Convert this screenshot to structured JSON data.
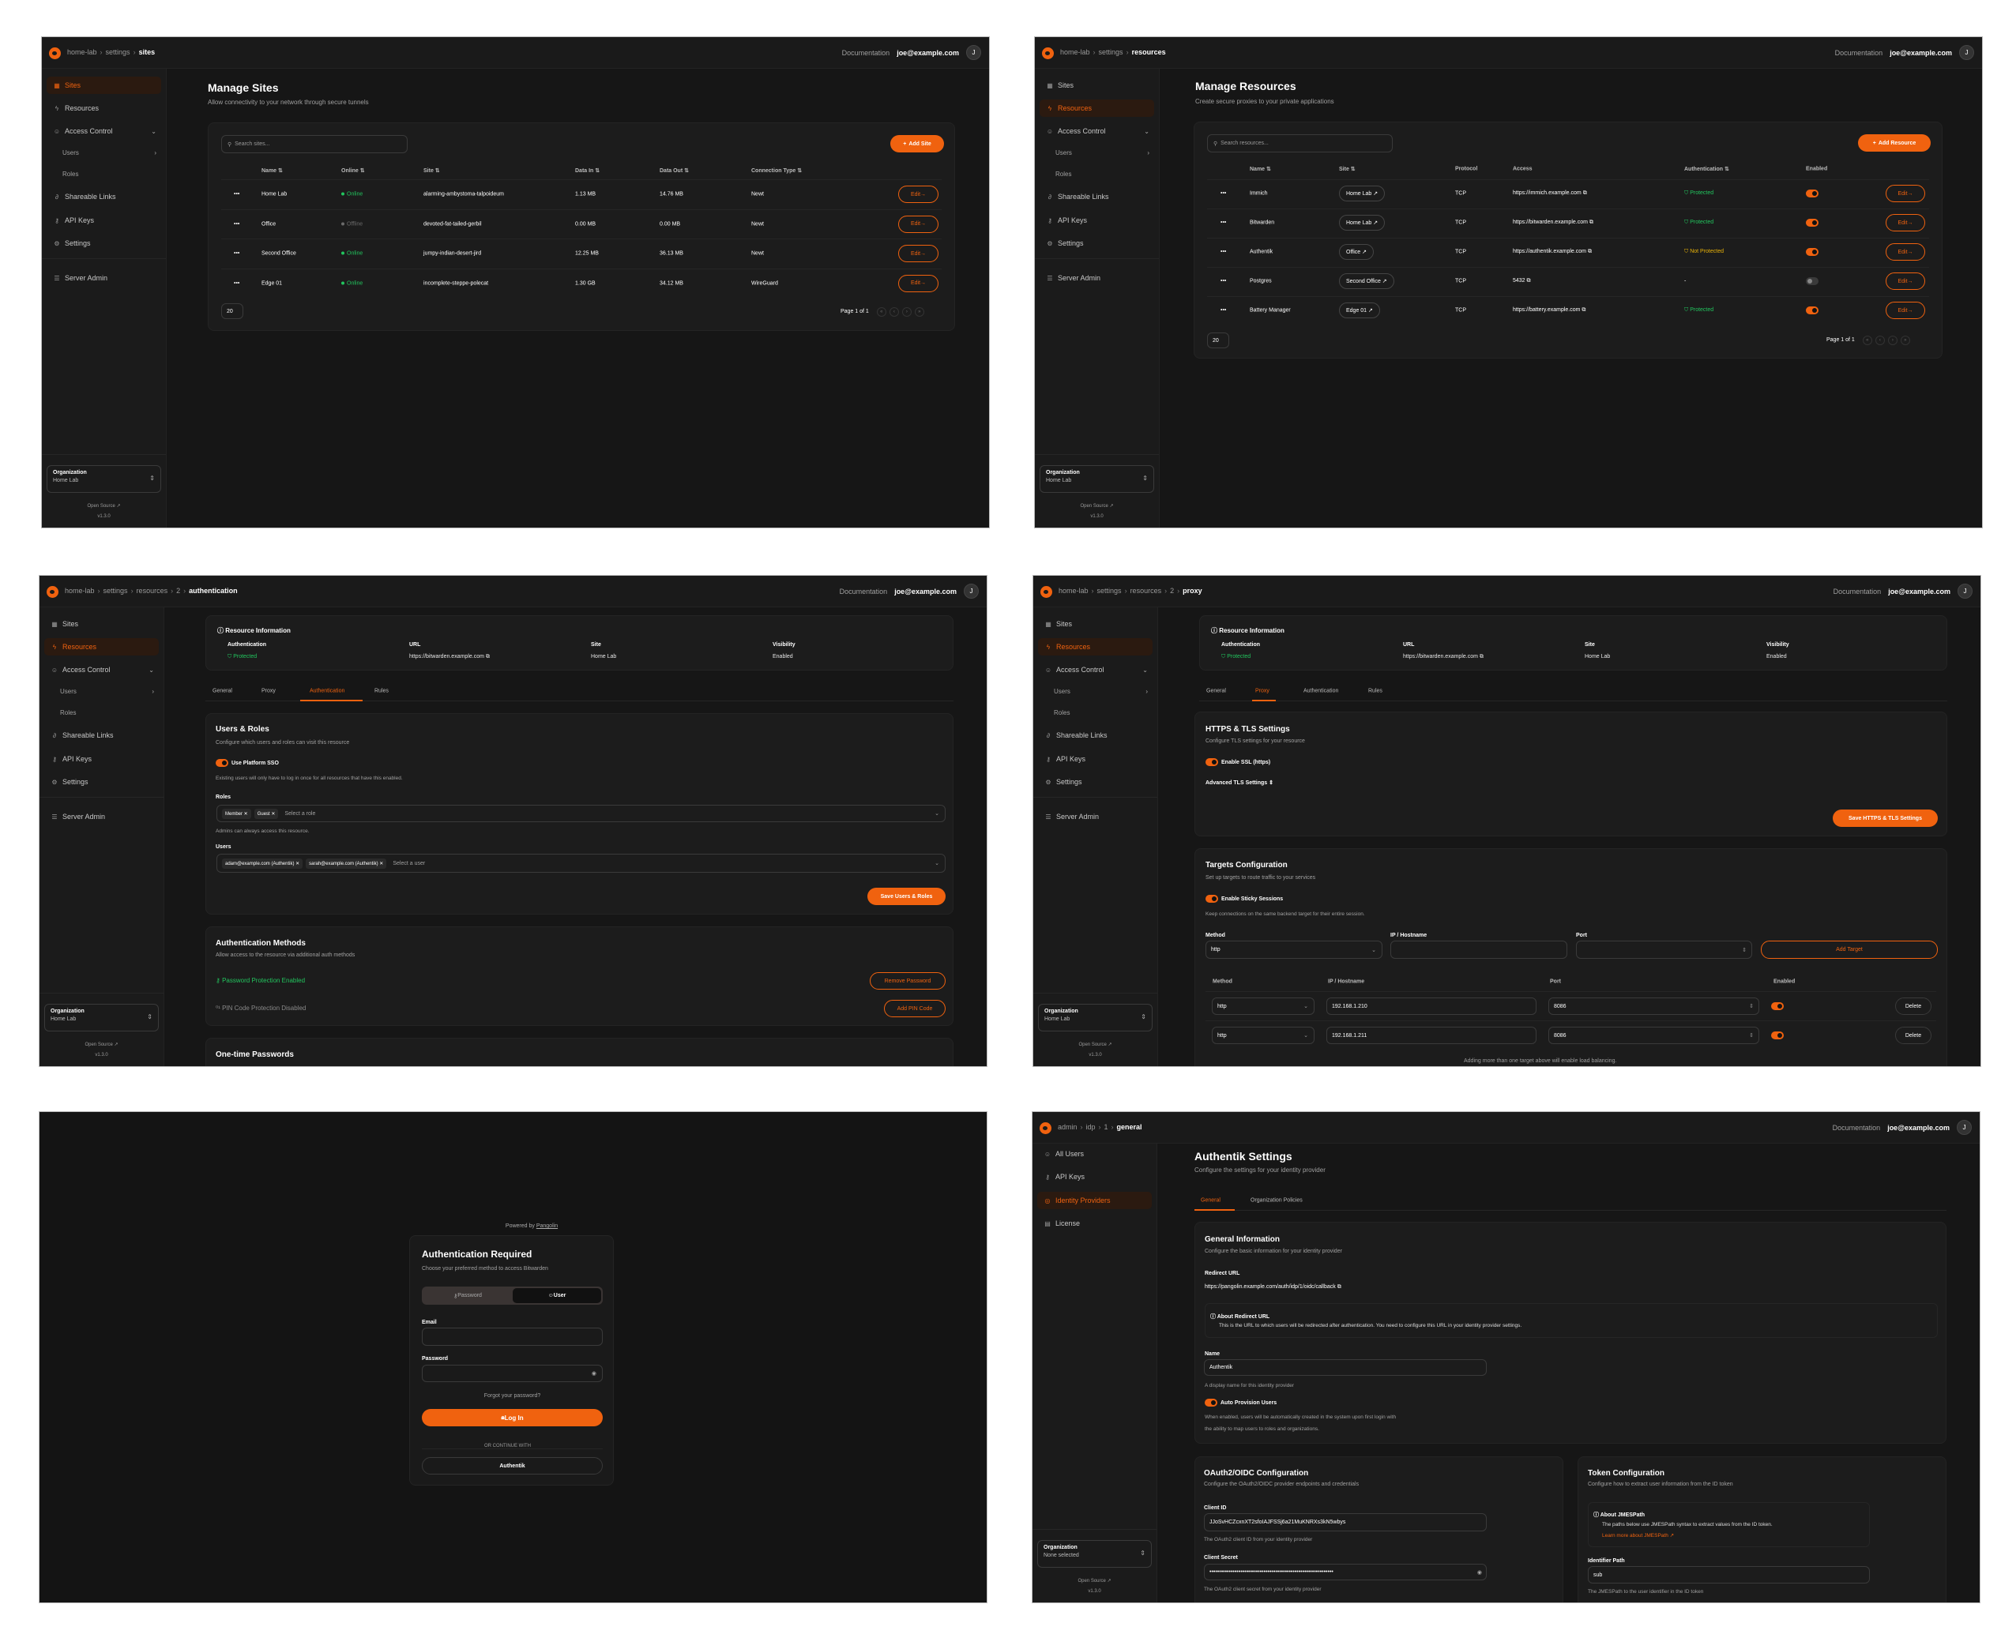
{
  "accent": "#f0620f",
  "colors": {
    "protected": "#22c55e",
    "not_protected": "#eab308",
    "offline": "#6b6b6b"
  },
  "common": {
    "documentation": "Documentation",
    "user_email": "joe@example.com",
    "avatar_initial": "J",
    "org_label": "Organization",
    "open_source": "Open Source",
    "version": "v1.3.0"
  },
  "org_nav": [
    {
      "label": "Sites",
      "icon": "sites-icon"
    },
    {
      "label": "Resources",
      "icon": "resources-icon"
    },
    {
      "label": "Access Control",
      "icon": "access-control-icon",
      "chevron": "down"
    },
    {
      "label": "Users",
      "sub": true,
      "chevron": "right"
    },
    {
      "label": "Roles",
      "sub": true
    },
    {
      "label": "Shareable Links",
      "icon": "link-icon"
    },
    {
      "label": "API Keys",
      "icon": "key-icon"
    },
    {
      "label": "Settings",
      "icon": "gear-icon"
    },
    {
      "label": "Server Admin",
      "icon": "server-icon"
    }
  ],
  "admin_nav": [
    {
      "label": "All Users",
      "icon": "users-icon"
    },
    {
      "label": "API Keys",
      "icon": "key-icon"
    },
    {
      "label": "Identity Providers",
      "icon": "fingerprint-icon"
    },
    {
      "label": "License",
      "icon": "license-icon"
    }
  ],
  "sites_page": {
    "breadcrumb": [
      "home-lab",
      "settings",
      "sites"
    ],
    "active_nav": 0,
    "org_name": "Home Lab",
    "title": "Manage Sites",
    "subtitle": "Allow connectivity to your network through secure tunnels",
    "search_placeholder": "Search sites...",
    "add_button": "Add Site",
    "columns": [
      "Name",
      "Online",
      "Site",
      "Data In",
      "Data Out",
      "Connection Type"
    ],
    "rows": [
      {
        "name": "Home Lab",
        "online": "Online",
        "site": "alarming-ambystoma-talpoideum",
        "data_in": "1.13 MB",
        "data_out": "14.76 MB",
        "type": "Newt"
      },
      {
        "name": "Office",
        "online": "Offline",
        "site": "devoted-fat-tailed-gerbil",
        "data_in": "0.00 MB",
        "data_out": "0.00 MB",
        "type": "Newt"
      },
      {
        "name": "Second Office",
        "online": "Online",
        "site": "jumpy-indian-desert-jird",
        "data_in": "12.25 MB",
        "data_out": "36.13 MB",
        "type": "Newt"
      },
      {
        "name": "Edge 01",
        "online": "Online",
        "site": "incomplete-steppe-polecat",
        "data_in": "1.30 GB",
        "data_out": "34.12 MB",
        "type": "WireGuard"
      }
    ],
    "edit_label": "Edit",
    "page_size": "20",
    "page_info": "Page 1 of 1"
  },
  "resources_page": {
    "breadcrumb": [
      "home-lab",
      "settings",
      "resources"
    ],
    "active_nav": 1,
    "org_name": "Home Lab",
    "title": "Manage Resources",
    "subtitle": "Create secure proxies to your private applications",
    "search_placeholder": "Search resources...",
    "add_button": "Add Resource",
    "columns": [
      "Name",
      "Site",
      "Protocol",
      "Access",
      "Authentication",
      "Enabled"
    ],
    "rows": [
      {
        "name": "Immich",
        "site": "Home Lab",
        "protocol": "TCP",
        "access": "https://immich.example.com",
        "auth": "Protected",
        "auth_state": "protected",
        "enabled": true
      },
      {
        "name": "Bitwarden",
        "site": "Home Lab",
        "protocol": "TCP",
        "access": "https://bitwarden.example.com",
        "auth": "Protected",
        "auth_state": "protected",
        "enabled": true
      },
      {
        "name": "Authentik",
        "site": "Office",
        "protocol": "TCP",
        "access": "https://authentik.example.com",
        "auth": "Not Protected",
        "auth_state": "not_protected",
        "enabled": true
      },
      {
        "name": "Postgres",
        "site": "Second Office",
        "protocol": "TCP",
        "access": "5432",
        "auth": "-",
        "auth_state": "none",
        "enabled": false
      },
      {
        "name": "Battery Manager",
        "site": "Edge 01",
        "protocol": "TCP",
        "access": "https://battery.example.com",
        "auth": "Protected",
        "auth_state": "protected",
        "enabled": true
      }
    ],
    "edit_label": "Edit",
    "page_size": "20",
    "page_info": "Page 1 of 1"
  },
  "resource_info": {
    "heading": "Resource Information",
    "fields": [
      {
        "label": "Authentication",
        "value": "Protected"
      },
      {
        "label": "URL",
        "value": "https://bitwarden.example.com"
      },
      {
        "label": "Site",
        "value": "Home Lab"
      },
      {
        "label": "Visibility",
        "value": "Enabled"
      }
    ],
    "tabs": [
      "General",
      "Proxy",
      "Authentication",
      "Rules"
    ]
  },
  "auth_page": {
    "breadcrumb": [
      "home-lab",
      "settings",
      "resources",
      "2",
      "authentication"
    ],
    "active_nav": 1,
    "org_name": "Home Lab",
    "active_tab": 2,
    "users_roles": {
      "title": "Users & Roles",
      "description": "Configure which users and roles can visit this resource",
      "sso_label": "Use Platform SSO",
      "sso_enabled": true,
      "sso_hint": "Existing users will only have to log in once for all resources that have this enabled.",
      "roles_label": "Roles",
      "roles": [
        "Member",
        "Guest"
      ],
      "roles_placeholder": "Select a role",
      "admins_hint": "Admins can always access this resource.",
      "users_label": "Users",
      "users": [
        "adam@example.com (Authentik)",
        "sarah@example.com (Authentik)"
      ],
      "users_placeholder": "Select a user",
      "save_button": "Save Users & Roles"
    },
    "methods": {
      "title": "Authentication Methods",
      "description": "Allow access to the resource via additional auth methods",
      "password_status": "Password Protection Enabled",
      "remove_password": "Remove Password",
      "pin_status": "PIN Code Protection Disabled",
      "add_pin": "Add PIN Code"
    },
    "otp_title": "One-time Passwords"
  },
  "proxy_page": {
    "breadcrumb": [
      "home-lab",
      "settings",
      "resources",
      "2",
      "proxy"
    ],
    "active_nav": 1,
    "org_name": "Home Lab",
    "active_tab": 1,
    "tls": {
      "title": "HTTPS & TLS Settings",
      "description": "Configure TLS settings for your resource",
      "ssl_label": "Enable SSL (https)",
      "ssl_enabled": true,
      "advanced_label": "Advanced TLS Settings",
      "save_button": "Save HTTPS & TLS Settings"
    },
    "targets": {
      "title": "Targets Configuration",
      "description": "Set up targets to route traffic to your services",
      "sticky_label": "Enable Sticky Sessions",
      "sticky_enabled": true,
      "sticky_hint": "Keep connections on the same backend target for their entire session.",
      "method_label": "Method",
      "ip_label": "IP / Hostname",
      "port_label": "Port",
      "new_method": "http",
      "add_button": "Add Target",
      "columns": [
        "Method",
        "IP / Hostname",
        "Port",
        "Enabled"
      ],
      "rows": [
        {
          "method": "http",
          "ip": "192.168.1.210",
          "port": "8086",
          "enabled": true
        },
        {
          "method": "http",
          "ip": "192.168.1.211",
          "port": "8086",
          "enabled": true
        }
      ],
      "delete_label": "Delete",
      "footnote": "Adding more than one target above will enable load balancing."
    }
  },
  "login_page": {
    "powered_by": "Powered by",
    "powered_link": "Pangolin",
    "title": "Authentication Required",
    "subtitle": "Choose your preferred method to access Bitwarden",
    "tab_password": "Password",
    "tab_user": "User",
    "active_tab": "User",
    "email_label": "Email",
    "email_value": "",
    "password_label": "Password",
    "password_value": "",
    "forgot": "Forgot your password?",
    "login_button": "Log In",
    "or_continue": "OR CONTINUE WITH",
    "sso_button": "Authentik"
  },
  "idp_page": {
    "breadcrumb": [
      "admin",
      "idp",
      "1",
      "general"
    ],
    "active_nav": 2,
    "org_name": "None selected",
    "title": "Authentik Settings",
    "subtitle": "Configure the settings for your identity provider",
    "tabs": [
      "General",
      "Organization Policies"
    ],
    "active_tab": 0,
    "general": {
      "title": "General Information",
      "description": "Configure the basic information for your identity provider",
      "redirect_label": "Redirect URL",
      "redirect_url": "https://pangolin.example.com/auth/idp/1/oidc/callback",
      "about_title": "About Redirect URL",
      "about_text": "This is the URL to which users will be redirected after authentication. You need to configure this URL in your identity provider settings.",
      "name_label": "Name",
      "name_value": "Authentik",
      "name_hint": "A display name for this identity provider",
      "auto_label": "Auto Provision Users",
      "auto_enabled": true,
      "auto_hint_1": "When enabled, users will be automatically created in the system upon first login with",
      "auto_hint_2": "the ability to map users to roles and organizations."
    },
    "oauth": {
      "title": "OAuth2/OIDC Configuration",
      "description": "Configure the OAuth2/OIDC provider endpoints and credentials",
      "client_id_label": "Client ID",
      "client_id": "JJoSvHCZcxnXT2sfoIAJFSSj6a21MuKNRXs3kN5wbys",
      "client_id_hint": "The OAuth2 client ID from your identity provider",
      "client_secret_label": "Client Secret",
      "client_secret": "••••••••••••••••••••••••••••••••••••••••••••••••••••••••••••••••",
      "client_secret_hint": "The OAuth2 client secret from your identity provider"
    },
    "token": {
      "title": "Token Configuration",
      "description": "Configure how to extract user information from the ID token",
      "about_title": "About JMESPath",
      "about_text": "The paths below use JMESPath syntax to extract values from the ID token.",
      "learn_more": "Learn more about JMESPath",
      "identifier_label": "Identifier Path",
      "identifier_value": "sub",
      "identifier_hint": "The JMESPath to the user identifier in the ID token"
    }
  }
}
